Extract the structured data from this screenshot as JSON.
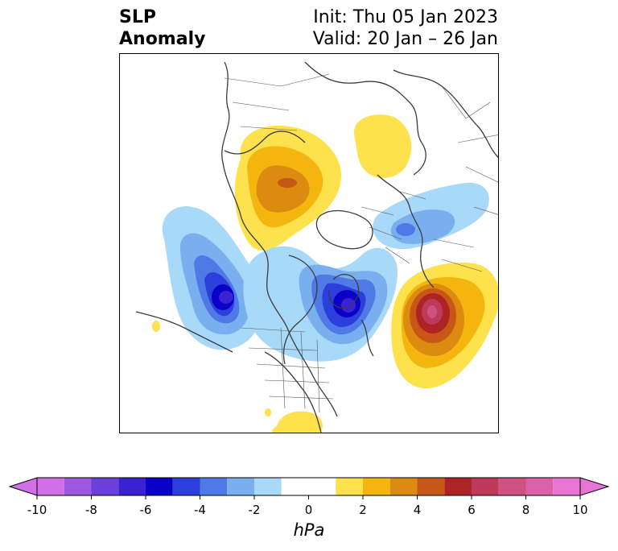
{
  "header": {
    "title_line1": "SLP",
    "title_line2": "Anomaly",
    "init_text": "Init: Thu 05 Jan 2023",
    "valid_text": "Valid: 20 Jan – 26 Jan"
  },
  "colorbar": {
    "unit": "hPa",
    "tick_labels": [
      "-10",
      "-8",
      "-6",
      "-4",
      "-2",
      "0",
      "2",
      "4",
      "6",
      "8",
      "10"
    ],
    "levels": [
      -10,
      -9,
      -8,
      -7,
      -6,
      -5,
      -4,
      -3,
      -2,
      -1,
      1,
      2,
      3,
      4,
      5,
      6,
      7,
      8,
      9,
      10
    ],
    "colors": [
      "#d16ee8",
      "#9e57e0",
      "#6b3fd9",
      "#3a22d2",
      "#0a00c8",
      "#2b3fdb",
      "#4f7ae6",
      "#79afef",
      "#a8d9f8",
      "#ffffff",
      "#fde14d",
      "#f4b60e",
      "#dd8a10",
      "#c65716",
      "#ae2325",
      "#bf3a58",
      "#cd5282",
      "#d961a8",
      "#e675d4"
    ],
    "extend": "both"
  },
  "map": {
    "projection": "north-polar",
    "field": "SLP anomaly",
    "features": [
      {
        "name": "Siberian/Arctic positive anomaly",
        "sign": "positive",
        "peak_hpa": 6
      },
      {
        "name": "Scandinavian positive anomaly",
        "sign": "positive",
        "peak_hpa": 2
      },
      {
        "name": "North Pacific negative anomaly",
        "sign": "negative",
        "peak_hpa": -7
      },
      {
        "name": "Canada / Hudson Bay negative anomaly",
        "sign": "negative",
        "peak_hpa": -7
      },
      {
        "name": "Europe negative anomaly",
        "sign": "negative",
        "peak_hpa": -3
      },
      {
        "name": "North Atlantic positive anomaly",
        "sign": "positive",
        "peak_hpa": 8
      },
      {
        "name": "Gulf of Mexico positive anomaly",
        "sign": "positive",
        "peak_hpa": 2
      }
    ]
  }
}
